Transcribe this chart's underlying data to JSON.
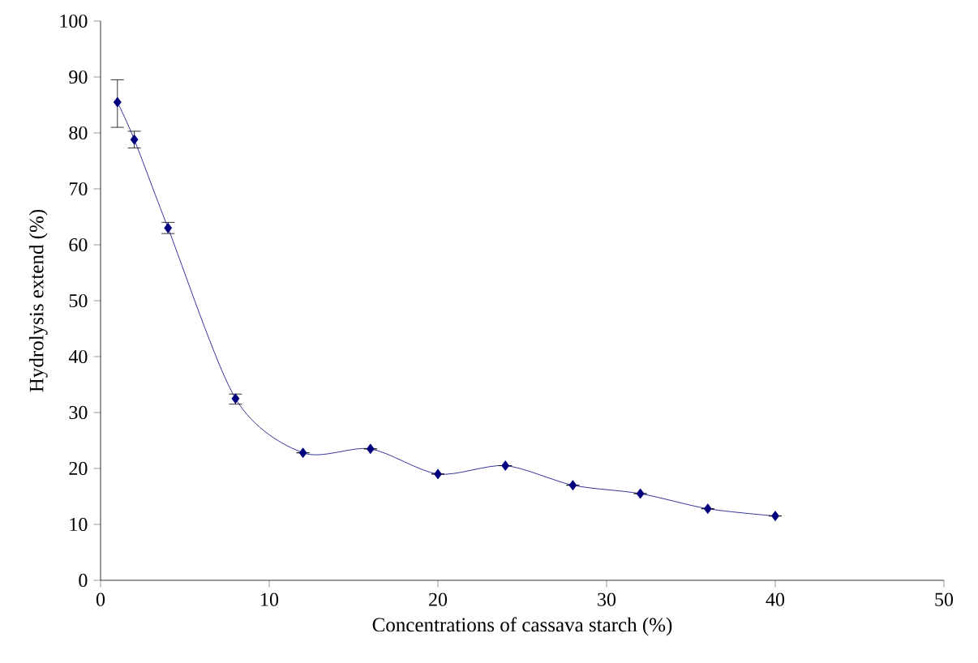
{
  "chart_data": {
    "type": "line",
    "xlabel": "Concentrations of  cassava starch (%)",
    "ylabel": "Hydrolysis extend (%)",
    "x": [
      1,
      2,
      4,
      8,
      12,
      16,
      20,
      24,
      28,
      32,
      36,
      40
    ],
    "series": [
      {
        "color": "#00007f",
        "values": [
          85.5,
          78.8,
          63,
          32.5,
          22.8,
          23.5,
          19,
          20.5,
          17,
          15.5,
          12.8,
          11.5
        ],
        "errors": [
          [
            81,
            89.5
          ],
          [
            77.3,
            80.3
          ],
          [
            62,
            64
          ],
          [
            31.5,
            33.3
          ],
          null,
          null,
          null,
          null,
          null,
          null,
          null,
          null
        ]
      }
    ],
    "xlim": [
      0,
      50
    ],
    "xticks": [
      0,
      10,
      20,
      30,
      40,
      50
    ],
    "ylim": [
      0,
      100
    ],
    "yticks": [
      0,
      10,
      20,
      30,
      40,
      50,
      60,
      70,
      80,
      90,
      100
    ],
    "grid": false,
    "legend": false,
    "marker": "diamond",
    "line_style": "solid"
  }
}
